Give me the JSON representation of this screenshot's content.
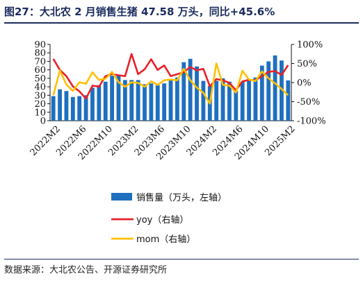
{
  "title": "图27：大北农 2 月销售生猪 47.58 万头，同比+45.6%",
  "source": "数据来源：大北农公告、开源证券研究所",
  "colors": {
    "bar": "#1f6fbf",
    "yoy": "#e8202a",
    "mom": "#ffc000",
    "title": "#1a2b5e"
  },
  "chart_data": {
    "type": "bar",
    "x": [
      "2022M2",
      "2022M3",
      "2022M4",
      "2022M5",
      "2022M6",
      "2022M7",
      "2022M8",
      "2022M9",
      "2022M10",
      "2022M11",
      "2022M12",
      "2023M1",
      "2023M2",
      "2023M3",
      "2023M4",
      "2023M5",
      "2023M6",
      "2023M7",
      "2023M8",
      "2023M9",
      "2023M10",
      "2023M11",
      "2023M12",
      "2024M1",
      "2024M2",
      "2024M3",
      "2024M4",
      "2024M5",
      "2024M6",
      "2024M7",
      "2024M8",
      "2024M9",
      "2024M10",
      "2024M11",
      "2024M12",
      "2025M1",
      "2025M2"
    ],
    "x_tick_labels": [
      "2022M2",
      "2022M6",
      "2022M10",
      "2023M2",
      "2023M6",
      "2023M10",
      "2024M2",
      "2024M6",
      "2024M10",
      "2025M2"
    ],
    "y_left": {
      "min": 0,
      "max": 90,
      "ticks": [
        "0",
        "10",
        "20",
        "30",
        "40",
        "50",
        "60",
        "70",
        "80",
        "90"
      ]
    },
    "y_right": {
      "min": -100,
      "max": 100,
      "ticks": [
        "-100%",
        "-50%",
        "0%",
        "50%",
        "100%"
      ]
    },
    "series": [
      {
        "name": "销售量（万头，左轴）",
        "axis": "left",
        "type": "bar",
        "values": [
          29,
          37,
          35,
          28,
          29,
          30,
          39,
          42,
          46,
          53,
          54,
          48,
          48,
          48,
          43,
          44,
          42,
          44,
          48,
          51,
          69,
          73,
          64,
          47,
          41,
          47,
          50,
          46,
          35,
          46,
          49,
          51,
          65,
          70,
          77,
          71,
          47.58
        ]
      },
      {
        "name": "yoy（右轴）",
        "axis": "right",
        "type": "line",
        "values": [
          62,
          33,
          17,
          -10,
          -23,
          -42,
          -8,
          -11,
          17,
          22,
          19,
          17,
          75,
          22,
          35,
          61,
          33,
          45,
          17,
          22,
          27,
          41,
          32,
          36,
          -10,
          9,
          6,
          -1,
          -20,
          3,
          7,
          6,
          17,
          28,
          30,
          20,
          45.6
        ]
      },
      {
        "name": "mom（右轴）",
        "axis": "right",
        "type": "line",
        "values": [
          -33,
          32,
          -5,
          -22,
          1,
          -3,
          27,
          7,
          10,
          28,
          1,
          -11,
          1,
          -1,
          -11,
          3,
          -6,
          6,
          8,
          6,
          36,
          6,
          -13,
          -27,
          -55,
          50,
          -6,
          -8,
          -26,
          31,
          8,
          4,
          29,
          11,
          -2,
          -17,
          -33
        ]
      }
    ],
    "legend_position": "bottom",
    "grid": false
  }
}
